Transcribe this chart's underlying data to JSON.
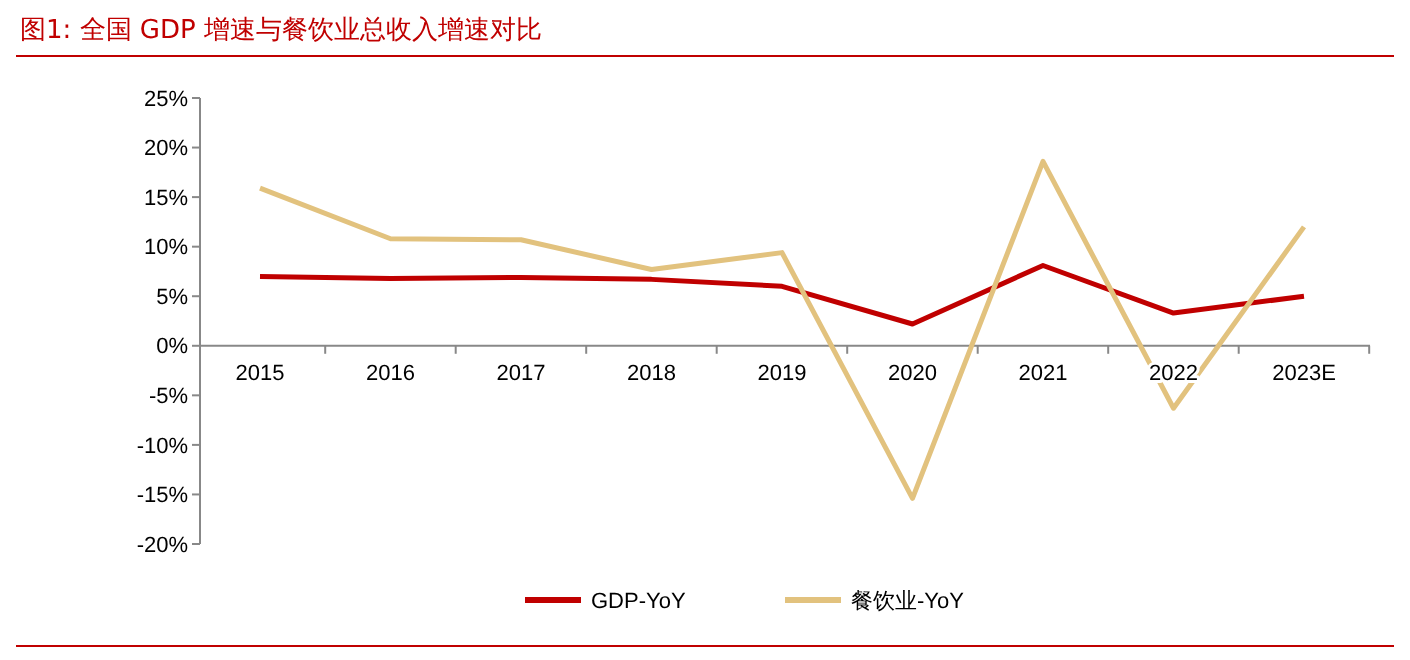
{
  "chart_data": {
    "type": "line",
    "title": "图1:    全国 GDP 增速与餐饮业总收入增速对比",
    "categories": [
      "2015",
      "2016",
      "2017",
      "2018",
      "2019",
      "2020",
      "2021",
      "2022",
      "2023E"
    ],
    "series": [
      {
        "name": "GDP-YoY",
        "color": "#c00000",
        "values": [
          7.0,
          6.8,
          6.9,
          6.7,
          6.0,
          2.2,
          8.1,
          3.3,
          5.0
        ]
      },
      {
        "name": "餐饮业-YoY",
        "color": "#e2c27e",
        "values": [
          15.9,
          10.8,
          10.7,
          7.7,
          9.4,
          -15.4,
          18.6,
          -6.3,
          12.0
        ]
      }
    ],
    "ylim": [
      -20,
      25
    ],
    "yticks": [
      {
        "value": -20,
        "label": "-20%"
      },
      {
        "value": -15,
        "label": "-15%"
      },
      {
        "value": -10,
        "label": "-10%"
      },
      {
        "value": -5,
        "label": "-5%"
      },
      {
        "value": 0,
        "label": "0%"
      },
      {
        "value": 5,
        "label": "5%"
      },
      {
        "value": 10,
        "label": "10%"
      },
      {
        "value": 15,
        "label": "15%"
      },
      {
        "value": 20,
        "label": "20%"
      },
      {
        "value": 25,
        "label": "25%"
      }
    ],
    "grid": false,
    "legend": "bottom",
    "marker": "none",
    "line_style": "solid"
  }
}
